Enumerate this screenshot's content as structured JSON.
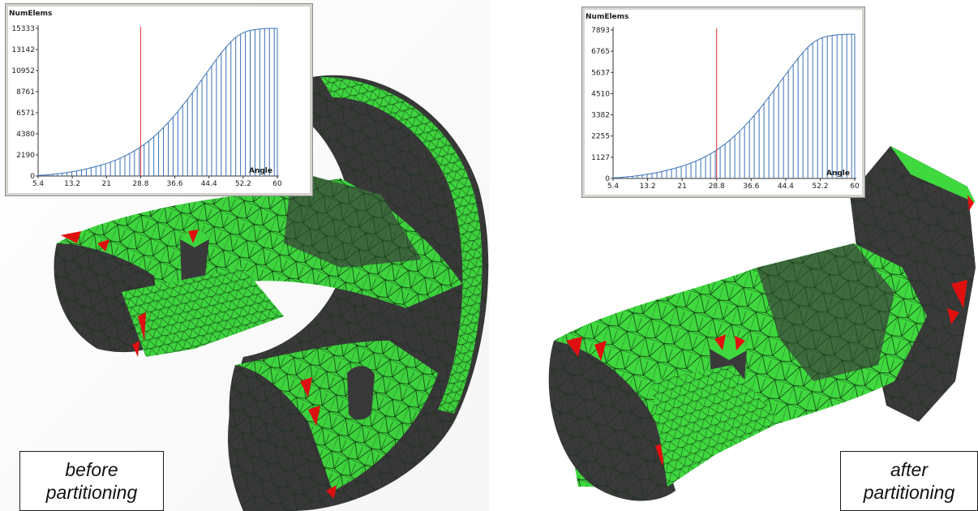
{
  "colors": {
    "mesh_green": "#3fd83f",
    "mesh_dark": "#3a3a3a",
    "mesh_line": "#0d2a0d",
    "sliver_red": "#e01010",
    "bar_blue": "#3a72b8",
    "threshold_red": "#e03030"
  },
  "panels": [
    {
      "caption_lines": [
        "before",
        "partitioning"
      ],
      "chart_data": {
        "type": "bar",
        "title": "",
        "ylabel": "NumElems",
        "xlabel": "Angle",
        "xlim": [
          5.4,
          60
        ],
        "ylim": [
          0,
          15333
        ],
        "x_tick_labels": [
          "5.4",
          "13.2",
          "21",
          "28.8",
          "36.6",
          "44.4",
          "52.2",
          "60"
        ],
        "y_tick_labels": [
          "0",
          "2190",
          "4380",
          "6571",
          "8761",
          "10952",
          "13142",
          "15333"
        ],
        "threshold_x": 28.8,
        "bars_x": [
          5.4,
          6.5,
          7.6,
          8.7,
          9.8,
          10.9,
          12.0,
          13.1,
          14.2,
          15.3,
          16.4,
          17.5,
          18.6,
          19.7,
          20.8,
          21.9,
          23.0,
          24.1,
          25.2,
          26.3,
          27.4,
          28.5,
          29.6,
          30.7,
          31.8,
          32.9,
          34.0,
          35.1,
          36.2,
          37.3,
          38.4,
          39.5,
          40.6,
          41.7,
          42.8,
          43.9,
          45.0,
          46.1,
          47.2,
          48.3,
          49.4,
          50.5,
          51.6,
          52.7,
          53.8,
          54.9,
          56.0,
          57.1,
          58.2,
          59.3,
          60.0
        ],
        "values": [
          60,
          90,
          130,
          180,
          230,
          290,
          360,
          440,
          530,
          630,
          740,
          860,
          990,
          1130,
          1280,
          1450,
          1640,
          1850,
          2080,
          2340,
          2620,
          2930,
          3280,
          3660,
          4080,
          4540,
          5030,
          5560,
          6120,
          6710,
          7330,
          7980,
          8650,
          9340,
          10040,
          10740,
          11440,
          12120,
          12780,
          13400,
          13950,
          14410,
          14750,
          14980,
          15120,
          15210,
          15270,
          15310,
          15330,
          15333,
          15333
        ]
      }
    },
    {
      "caption_lines": [
        "after",
        "partitioning"
      ],
      "chart_data": {
        "type": "bar",
        "title": "",
        "ylabel": "NumElems",
        "xlabel": "Angle",
        "xlim": [
          5.4,
          60
        ],
        "ylim": [
          0,
          7893
        ],
        "x_tick_labels": [
          "5.4",
          "13.2",
          "21",
          "28.8",
          "36.6",
          "44.4",
          "52.2",
          "60"
        ],
        "y_tick_labels": [
          "0",
          "1127",
          "2255",
          "3382",
          "4510",
          "5637",
          "6765",
          "7893"
        ],
        "threshold_x": 28.8,
        "bars_x": [
          5.4,
          6.5,
          7.6,
          8.7,
          9.8,
          10.9,
          12.0,
          13.1,
          14.2,
          15.3,
          16.4,
          17.5,
          18.6,
          19.7,
          20.8,
          21.9,
          23.0,
          24.1,
          25.2,
          26.3,
          27.4,
          28.5,
          29.6,
          30.7,
          31.8,
          32.9,
          34.0,
          35.1,
          36.2,
          37.3,
          38.4,
          39.5,
          40.6,
          41.7,
          42.8,
          43.9,
          45.0,
          46.1,
          47.2,
          48.3,
          49.4,
          50.5,
          51.6,
          52.7,
          53.8,
          54.9,
          56.0,
          57.1,
          58.2,
          59.3,
          60.0
        ],
        "values": [
          30,
          45,
          65,
          90,
          115,
          145,
          180,
          220,
          265,
          315,
          370,
          430,
          495,
          565,
          640,
          725,
          820,
          925,
          1040,
          1170,
          1310,
          1465,
          1640,
          1830,
          2040,
          2270,
          2515,
          2780,
          3060,
          3355,
          3665,
          3990,
          4325,
          4670,
          5020,
          5370,
          5720,
          6060,
          6390,
          6700,
          6975,
          7205,
          7375,
          7490,
          7560,
          7605,
          7635,
          7655,
          7665,
          7670,
          7670
        ]
      }
    }
  ]
}
